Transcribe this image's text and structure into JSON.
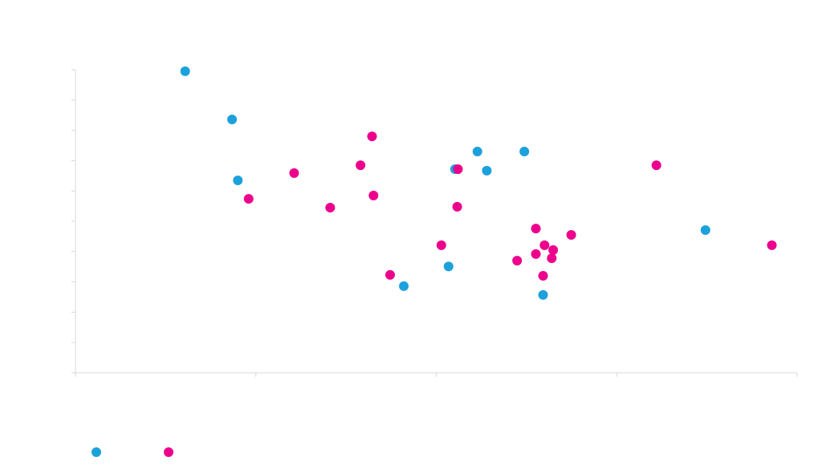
{
  "chart_data": {
    "type": "scatter",
    "title": "",
    "xlabel": "",
    "ylabel": "",
    "xlim": [
      0,
      100
    ],
    "ylim": [
      0,
      100
    ],
    "x_ticks": [
      0,
      25,
      50,
      75,
      100
    ],
    "y_ticks": [
      0,
      10,
      20,
      30,
      40,
      50,
      60,
      70,
      80,
      90,
      100
    ],
    "grid": false,
    "legend_position": "bottom-left",
    "series": [
      {
        "color": "#1ba1dc",
        "points": [
          {
            "x": 15.2,
            "y": 99.5
          },
          {
            "x": 21.7,
            "y": 83.6
          },
          {
            "x": 22.5,
            "y": 63.5
          },
          {
            "x": 45.5,
            "y": 28.6
          },
          {
            "x": 51.7,
            "y": 35.1
          },
          {
            "x": 52.6,
            "y": 67.2
          },
          {
            "x": 55.7,
            "y": 73.0
          },
          {
            "x": 57.0,
            "y": 66.7
          },
          {
            "x": 62.2,
            "y": 73.0
          },
          {
            "x": 64.8,
            "y": 25.7
          },
          {
            "x": 87.3,
            "y": 47.1
          }
        ]
      },
      {
        "color": "#ec008c",
        "points": [
          {
            "x": 24.0,
            "y": 57.4
          },
          {
            "x": 30.3,
            "y": 65.9
          },
          {
            "x": 35.3,
            "y": 54.5
          },
          {
            "x": 39.5,
            "y": 68.5
          },
          {
            "x": 41.1,
            "y": 78.0
          },
          {
            "x": 41.3,
            "y": 58.5
          },
          {
            "x": 43.6,
            "y": 32.3
          },
          {
            "x": 50.7,
            "y": 42.1
          },
          {
            "x": 52.9,
            "y": 54.8
          },
          {
            "x": 53.0,
            "y": 67.2
          },
          {
            "x": 61.2,
            "y": 37.0
          },
          {
            "x": 63.8,
            "y": 47.6
          },
          {
            "x": 63.8,
            "y": 39.2
          },
          {
            "x": 64.8,
            "y": 32.0
          },
          {
            "x": 65.0,
            "y": 42.1
          },
          {
            "x": 66.0,
            "y": 37.8
          },
          {
            "x": 66.2,
            "y": 40.5
          },
          {
            "x": 68.7,
            "y": 45.5
          },
          {
            "x": 80.5,
            "y": 68.5
          },
          {
            "x": 96.5,
            "y": 42.1
          }
        ]
      }
    ]
  }
}
